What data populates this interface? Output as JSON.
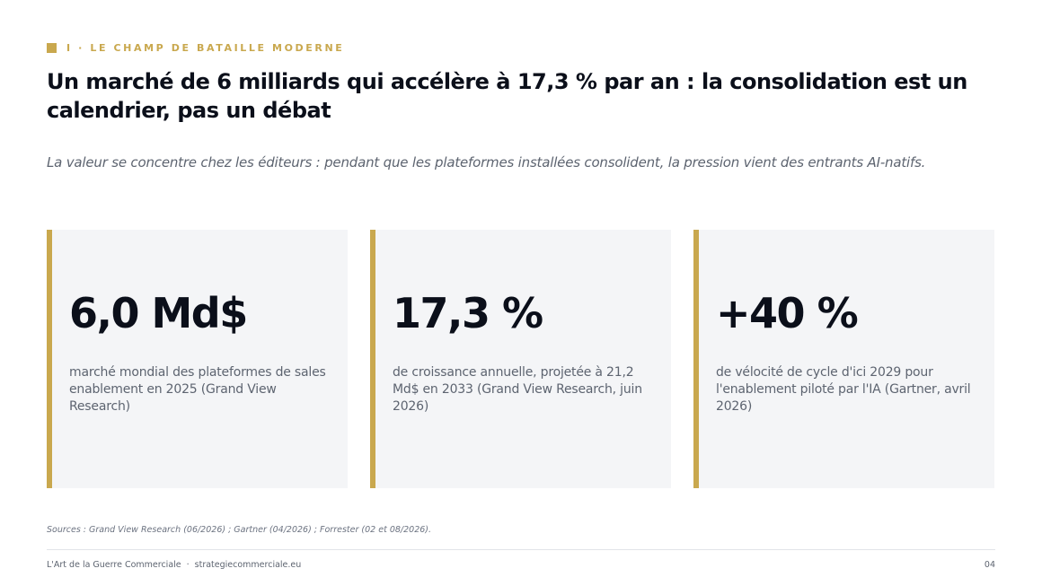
{
  "header": {
    "eyebrow": "I · LE CHAMP DE BATAILLE MODERNE",
    "title": "Un marché de 6 milliards qui accélère à 17,3 % par an : la consolidation est un calendrier, pas un débat",
    "subtitle": "La valeur se concentre chez les éditeurs : pendant que les plateformes installées consolident, la pression vient des entrants AI-natifs.",
    "accent_color": "#c9a84e"
  },
  "cards": [
    {
      "value": "6,0 Md$",
      "description": "marché mondial des plateformes de sales enablement en 2025 (Grand View Research)"
    },
    {
      "value": "17,3 %",
      "description": "de croissance annuelle, projetée à 21,2 Md$ en 2033 (Grand View Research, juin 2026)"
    },
    {
      "value": "+40 %",
      "description": "de vélocité de cycle d'ici 2029 pour l'enablement piloté par l'IA (Gartner, avril 2026)"
    }
  ],
  "sources": "Sources : Grand View Research (06/2026) ; Gartner (04/2026) ; Forrester (02 et 08/2026).",
  "footer": {
    "brand": "L'Art de la Guerre Commerciale",
    "separator": "·",
    "website": "strategiecommerciale.eu",
    "page_number": "04"
  }
}
